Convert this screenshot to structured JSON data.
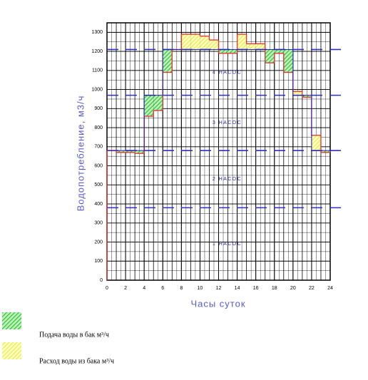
{
  "chart_data": {
    "type": "step",
    "y_label": "Водопотребление, м3/ч",
    "x_label": "Часы суток",
    "x": [
      0,
      1,
      2,
      3,
      4,
      5,
      6,
      7,
      8,
      9,
      10,
      11,
      12,
      13,
      14,
      15,
      16,
      17,
      18,
      19,
      20,
      21,
      22,
      23
    ],
    "series": [
      {
        "name": "Расход воды из бака  м³/ч",
        "color": "#e03030",
        "fill": "#ffff66",
        "values": [
          680,
          670,
          670,
          665,
          860,
          890,
          1090,
          1210,
          1290,
          1290,
          1280,
          1260,
          1190,
          1190,
          1290,
          1240,
          1240,
          1140,
          1190,
          1090,
          990,
          960,
          760,
          670
        ]
      },
      {
        "name": "Подача воды в бак  м³/ч",
        "color": "#2020b0",
        "fill": "#33cc33",
        "values": [
          680,
          680,
          680,
          680,
          970,
          970,
          1210,
          1210,
          1210,
          1210,
          1210,
          1210,
          1210,
          1210,
          1210,
          1210,
          1210,
          1210,
          1210,
          1210,
          970,
          970,
          680,
          680
        ]
      }
    ],
    "pumps": [
      {
        "name": "1 НАСОС",
        "value": 380
      },
      {
        "name": "2 НАСОС",
        "value": 680
      },
      {
        "name": "3 НАСОС",
        "value": 970
      },
      {
        "name": "4 НАСОС",
        "value": 1210
      }
    ],
    "xlim": [
      0,
      24
    ],
    "xticks": [
      0,
      2,
      4,
      6,
      8,
      10,
      12,
      14,
      16,
      18,
      20,
      22,
      24
    ],
    "ylim": [
      0,
      1350
    ],
    "yticks": [
      0,
      100,
      200,
      300,
      400,
      500,
      600,
      700,
      800,
      900,
      1000,
      1100,
      1200,
      1300
    ],
    "grid": true
  }
}
